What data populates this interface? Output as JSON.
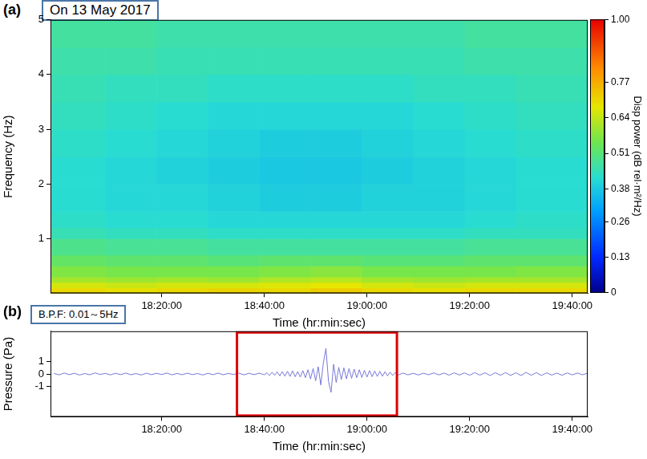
{
  "chart_data": [
    {
      "type": "heatmap",
      "panel": "(a)",
      "note": "On 13 May 2017",
      "x_label": "Time (hr:min:sec)",
      "y_label": "Frequency (Hz)",
      "xlim": [
        "17:58:20",
        "19:43:00"
      ],
      "xticks": [
        "18:20:00",
        "18:40:00",
        "19:00:00",
        "19:20:00",
        "19:40:00"
      ],
      "ylim": [
        0,
        5
      ],
      "yticks": [
        1,
        2,
        3,
        4,
        5
      ],
      "grid": false,
      "time_bins": [
        "17:58:20",
        "18:09:00",
        "18:19:00",
        "18:29:00",
        "18:39:00",
        "18:49:00",
        "18:59:00",
        "19:09:00",
        "19:19:00",
        "19:29:00",
        "19:43:00"
      ],
      "freq_bins": [
        0,
        0.1,
        0.2,
        0.3,
        0.5,
        0.7,
        1.0,
        1.2,
        1.5,
        2,
        2.5,
        3,
        3.5,
        4,
        4.5,
        5
      ],
      "cells": [
        [
          0.7,
          0.69,
          0.7,
          0.71,
          0.7,
          0.72,
          0.7,
          0.69,
          0.7,
          0.7
        ],
        [
          0.66,
          0.65,
          0.66,
          0.66,
          0.67,
          0.68,
          0.66,
          0.65,
          0.66,
          0.66
        ],
        [
          0.61,
          0.6,
          0.61,
          0.6,
          0.62,
          0.63,
          0.61,
          0.6,
          0.61,
          0.61
        ],
        [
          0.57,
          0.56,
          0.56,
          0.56,
          0.57,
          0.58,
          0.56,
          0.56,
          0.56,
          0.57
        ],
        [
          0.53,
          0.52,
          0.52,
          0.51,
          0.52,
          0.52,
          0.51,
          0.51,
          0.52,
          0.52
        ],
        [
          0.49,
          0.48,
          0.48,
          0.47,
          0.47,
          0.47,
          0.47,
          0.47,
          0.48,
          0.48
        ],
        [
          0.45,
          0.44,
          0.44,
          0.43,
          0.43,
          0.43,
          0.43,
          0.43,
          0.44,
          0.44
        ],
        [
          0.43,
          0.42,
          0.42,
          0.41,
          0.41,
          0.41,
          0.41,
          0.41,
          0.42,
          0.43
        ],
        [
          0.42,
          0.41,
          0.41,
          0.4,
          0.39,
          0.39,
          0.4,
          0.4,
          0.41,
          0.42
        ],
        [
          0.42,
          0.41,
          0.4,
          0.39,
          0.38,
          0.38,
          0.39,
          0.4,
          0.41,
          0.42
        ],
        [
          0.43,
          0.42,
          0.41,
          0.4,
          0.39,
          0.39,
          0.4,
          0.41,
          0.42,
          0.43
        ],
        [
          0.44,
          0.43,
          0.42,
          0.41,
          0.41,
          0.41,
          0.41,
          0.42,
          0.43,
          0.44
        ],
        [
          0.45,
          0.44,
          0.44,
          0.43,
          0.43,
          0.43,
          0.43,
          0.44,
          0.44,
          0.45
        ],
        [
          0.46,
          0.46,
          0.45,
          0.45,
          0.45,
          0.45,
          0.45,
          0.45,
          0.46,
          0.46
        ],
        [
          0.47,
          0.47,
          0.46,
          0.46,
          0.46,
          0.46,
          0.46,
          0.46,
          0.47,
          0.47
        ]
      ],
      "colorbar": {
        "title": "Disp power (dB rel·m²/Hz)",
        "lim": [
          0,
          1
        ],
        "ticks": [
          0,
          0.13,
          0.26,
          0.38,
          0.51,
          0.64,
          0.77,
          {
            "value": 1,
            "label": "1.00"
          }
        ]
      }
    },
    {
      "type": "line",
      "panel": "(b)",
      "note": "B.P.F: 0.01～5Hz",
      "x_label": "Time (hr:min:sec)",
      "y_label": "Pressure (Pa)",
      "xlim": [
        "17:58:20",
        "19:43:00"
      ],
      "xticks": [
        "18:20:00",
        "18:40:00",
        "19:00:00",
        "19:20:00",
        "19:40:00"
      ],
      "ylim": [
        -3.5,
        3.5
      ],
      "yticks": [
        -1,
        0,
        1
      ],
      "grid": false,
      "color": "#7878d8",
      "highlight": {
        "x": [
          "18:34:40",
          "19:05:50"
        ],
        "color": "#e00000"
      },
      "x": [
        "17:59:00",
        "18:00:00",
        "18:01:00",
        "18:02:00",
        "18:03:00",
        "18:04:00",
        "18:05:00",
        "18:06:00",
        "18:07:00",
        "18:08:00",
        "18:09:00",
        "18:10:00",
        "18:11:00",
        "18:12:00",
        "18:13:00",
        "18:14:00",
        "18:15:00",
        "18:16:00",
        "18:17:00",
        "18:18:00",
        "18:19:00",
        "18:20:00",
        "18:21:00",
        "18:22:00",
        "18:23:00",
        "18:24:00",
        "18:25:00",
        "18:26:00",
        "18:27:00",
        "18:28:00",
        "18:29:00",
        "18:30:00",
        "18:31:00",
        "18:32:00",
        "18:33:00",
        "18:34:00",
        "18:35:00",
        "18:36:00",
        "18:37:00",
        "18:38:00",
        "18:39:00",
        "18:40:00",
        "18:40:30",
        "18:41:00",
        "18:41:30",
        "18:42:00",
        "18:42:30",
        "18:43:00",
        "18:43:30",
        "18:44:00",
        "18:44:30",
        "18:45:00",
        "18:45:30",
        "18:46:00",
        "18:46:30",
        "18:47:00",
        "18:47:30",
        "18:48:00",
        "18:48:30",
        "18:49:00",
        "18:49:30",
        "18:50:00",
        "18:50:30",
        "18:51:00",
        "18:51:30",
        "18:52:00",
        "18:52:30",
        "18:53:00",
        "18:53:30",
        "18:54:00",
        "18:54:30",
        "18:55:00",
        "18:55:30",
        "18:56:00",
        "18:56:30",
        "18:57:00",
        "18:57:30",
        "18:58:00",
        "18:58:30",
        "18:59:00",
        "18:59:30",
        "19:00:00",
        "19:00:30",
        "19:01:00",
        "19:01:30",
        "19:02:00",
        "19:02:30",
        "19:03:00",
        "19:03:30",
        "19:04:00",
        "19:04:30",
        "19:05:00",
        "19:05:30",
        "19:06:00",
        "19:07:00",
        "19:08:00",
        "19:09:00",
        "19:10:00",
        "19:11:00",
        "19:12:00",
        "19:13:00",
        "19:14:00",
        "19:15:00",
        "19:16:00",
        "19:17:00",
        "19:18:00",
        "19:19:00",
        "19:20:00",
        "19:21:00",
        "19:22:00",
        "19:23:00",
        "19:24:00",
        "19:25:00",
        "19:26:00",
        "19:27:00",
        "19:28:00",
        "19:29:00",
        "19:30:00",
        "19:31:00",
        "19:32:00",
        "19:33:00",
        "19:34:00",
        "19:35:00",
        "19:36:00",
        "19:37:00",
        "19:38:00",
        "19:39:00",
        "19:40:00",
        "19:41:00",
        "19:42:00",
        "19:43:00"
      ],
      "values": [
        0.05,
        -0.07,
        0.08,
        -0.05,
        0.06,
        -0.08,
        0.04,
        -0.06,
        0.09,
        -0.04,
        0.05,
        -0.07,
        0.06,
        -0.05,
        0.08,
        -0.06,
        0.04,
        -0.08,
        0.07,
        -0.05,
        0.06,
        -0.04,
        0.08,
        -0.07,
        0.05,
        -0.06,
        0.07,
        -0.05,
        0.04,
        -0.08,
        0.06,
        -0.05,
        0.07,
        -0.06,
        0.05,
        -0.04,
        0.08,
        -0.07,
        0.06,
        -0.05,
        0.07,
        -0.06,
        0.1,
        -0.12,
        0.15,
        -0.1,
        0.18,
        -0.15,
        0.2,
        -0.18,
        0.22,
        -0.2,
        0.25,
        -0.22,
        0.2,
        -0.25,
        0.28,
        -0.3,
        0.35,
        -0.4,
        0.45,
        -0.55,
        0.6,
        -0.9,
        0.9,
        2.1,
        -0.6,
        -1.5,
        0.8,
        -0.7,
        0.55,
        -0.45,
        0.5,
        -0.4,
        0.45,
        -0.35,
        0.4,
        -0.3,
        0.35,
        -0.28,
        0.3,
        -0.25,
        0.28,
        -0.22,
        0.25,
        -0.2,
        0.22,
        -0.18,
        0.18,
        -0.15,
        0.15,
        -0.12,
        0.12,
        -0.1,
        0.08,
        -0.07,
        0.06,
        -0.08,
        0.07,
        -0.06,
        0.09,
        -0.07,
        0.08,
        -0.09,
        0.1,
        -0.08,
        0.09,
        -0.1,
        0.11,
        -0.09,
        0.1,
        -0.12,
        0.11,
        -0.1,
        0.12,
        -0.11,
        0.1,
        -0.12,
        0.13,
        -0.1,
        0.11,
        -0.12,
        0.1,
        -0.09,
        0.08,
        -0.1,
        0.09,
        -0.07,
        0.08,
        -0.06,
        0.07
      ]
    }
  ]
}
